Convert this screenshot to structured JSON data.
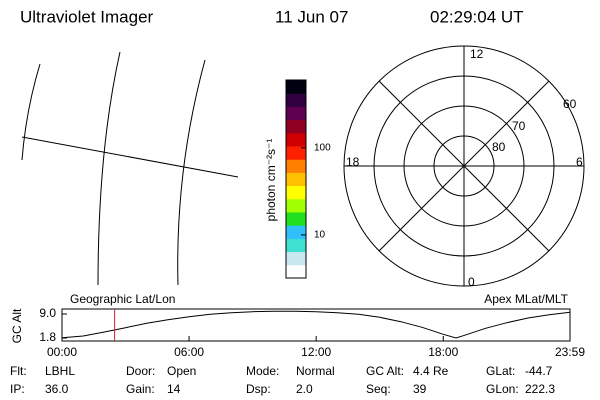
{
  "header": {
    "title": "Ultraviolet Imager",
    "date": "11 Jun 07",
    "time": "02:29:04 UT"
  },
  "colorbar": {
    "label": "photon cm⁻²s⁻¹",
    "log_scale": true,
    "range": [
      3.2,
      600
    ],
    "ticks": [
      10,
      100
    ],
    "colors": [
      "#ffffff",
      "#c8e8f0",
      "#40e0d0",
      "#30c0ff",
      "#20e020",
      "#a0ff00",
      "#ffff00",
      "#ffc000",
      "#ff8000",
      "#ff2000",
      "#d00000",
      "#900020",
      "#600050",
      "#300040",
      "#000010"
    ]
  },
  "polar": {
    "mlt_labels": [
      "12",
      "6",
      "0",
      "18"
    ],
    "lat_labels": [
      60,
      70,
      80
    ]
  },
  "altitude_plot": {
    "type": "line",
    "y_label": "GC Alt",
    "left_label": "Geographic Lat/Lon",
    "right_label": "Apex MLat/MLT",
    "x": [
      0,
      1,
      2,
      3,
      4,
      5,
      6,
      7,
      8,
      9,
      10,
      11,
      12,
      13,
      14,
      15,
      16,
      17,
      18,
      18.6,
      19,
      20,
      21,
      22,
      23,
      23.983
    ],
    "values": [
      1.9,
      2.4,
      3.6,
      4.9,
      6.2,
      7.3,
      8.2,
      8.9,
      9.4,
      9.7,
      9.8,
      9.8,
      9.7,
      9.4,
      8.9,
      8.0,
      6.7,
      5.0,
      2.9,
      1.8,
      2.6,
      4.7,
      6.4,
      7.8,
      8.8,
      9.5
    ],
    "color": "#000000",
    "marker_x": 2.484,
    "marker_color": "#d02020",
    "xlim": [
      0,
      23.983
    ],
    "ylim": [
      0.9,
      10.5
    ],
    "xticks": [
      {
        "value": 0,
        "label": "00:00"
      },
      {
        "value": 6,
        "label": "06:00"
      },
      {
        "value": 12,
        "label": "12:00"
      },
      {
        "value": 18,
        "label": "18:00"
      },
      {
        "value": 23.983,
        "label": "23:59"
      }
    ],
    "yticks": [
      1.8,
      {
        "value": 9,
        "label": "9.0"
      }
    ]
  },
  "footer": {
    "rows": [
      [
        [
          "Flt:",
          "LBHL"
        ],
        [
          "Door:",
          "Open"
        ],
        [
          "Mode:",
          "Normal"
        ],
        [
          "GC Alt:",
          "4.4 Re"
        ],
        [
          "GLat:",
          "-44.7"
        ]
      ],
      [
        [
          "IP:",
          "36.0"
        ],
        [
          "Gain:",
          "14"
        ],
        [
          "Dsp:",
          "2.0"
        ],
        [
          "Seq:",
          "39"
        ],
        [
          "GLon:",
          "222.3"
        ]
      ]
    ]
  }
}
